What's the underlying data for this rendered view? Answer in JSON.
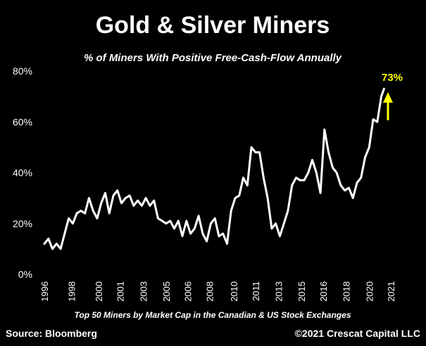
{
  "colors": {
    "background": "#000000",
    "line": "#ffffff",
    "text": "#ffffff",
    "accent": "#ffff00"
  },
  "footer": {
    "source": "Source: Bloomberg",
    "copyright": "©2021 Crescat Capital LLC"
  },
  "chart_data": {
    "type": "line",
    "title": "Gold & Silver Miners",
    "subtitle": "% of Miners With Positive Free-Cash-Flow Annually",
    "xlabel": "Top 50 Miners by Market Cap in the Canadian & US Stock Exchanges",
    "ylabel": "",
    "grid": false,
    "legend": "none",
    "xlim": [
      1996,
      2021.6
    ],
    "ylim": [
      0,
      80
    ],
    "y_ticks": [
      {
        "value": 0,
        "label": "0%"
      },
      {
        "value": 20,
        "label": "20%"
      },
      {
        "value": 40,
        "label": "40%"
      },
      {
        "value": 60,
        "label": "60%"
      },
      {
        "value": 80,
        "label": "80%"
      }
    ],
    "x_ticks": [
      {
        "value": 1996,
        "label": "1996"
      },
      {
        "value": 1998,
        "label": "1998"
      },
      {
        "value": 2000,
        "label": "2000"
      },
      {
        "value": 2001.6,
        "label": "2001"
      },
      {
        "value": 2003.3,
        "label": "2003"
      },
      {
        "value": 2005,
        "label": "2005"
      },
      {
        "value": 2006.6,
        "label": "2006"
      },
      {
        "value": 2008.2,
        "label": "2008"
      },
      {
        "value": 2010,
        "label": "2010"
      },
      {
        "value": 2011.6,
        "label": "2011"
      },
      {
        "value": 2013.3,
        "label": "2013"
      },
      {
        "value": 2015,
        "label": "2015"
      },
      {
        "value": 2016.6,
        "label": "2016"
      },
      {
        "value": 2018.3,
        "label": "2018"
      },
      {
        "value": 2020,
        "label": "2020"
      },
      {
        "value": 2021.6,
        "label": "2021"
      }
    ],
    "annotation": {
      "label": "73%",
      "value": 73,
      "arrow": "up"
    },
    "series": [
      {
        "values": [
          [
            1996.0,
            12
          ],
          [
            1996.3,
            14
          ],
          [
            1996.6,
            10
          ],
          [
            1996.9,
            12
          ],
          [
            1997.2,
            10
          ],
          [
            1997.5,
            16
          ],
          [
            1997.8,
            22
          ],
          [
            1998.1,
            20
          ],
          [
            1998.4,
            24
          ],
          [
            1998.7,
            25
          ],
          [
            1999.0,
            24
          ],
          [
            1999.3,
            30
          ],
          [
            1999.6,
            25
          ],
          [
            1999.9,
            22
          ],
          [
            2000.2,
            28
          ],
          [
            2000.5,
            32
          ],
          [
            2000.8,
            24
          ],
          [
            2001.1,
            31
          ],
          [
            2001.4,
            33
          ],
          [
            2001.7,
            28
          ],
          [
            2002.0,
            30
          ],
          [
            2002.3,
            31
          ],
          [
            2002.6,
            27
          ],
          [
            2002.9,
            29
          ],
          [
            2003.2,
            27
          ],
          [
            2003.5,
            30
          ],
          [
            2003.8,
            27
          ],
          [
            2004.1,
            29
          ],
          [
            2004.4,
            22
          ],
          [
            2004.7,
            21
          ],
          [
            2005.0,
            20
          ],
          [
            2005.3,
            21
          ],
          [
            2005.6,
            18
          ],
          [
            2005.9,
            21
          ],
          [
            2006.2,
            15
          ],
          [
            2006.5,
            21
          ],
          [
            2006.8,
            16
          ],
          [
            2007.1,
            18
          ],
          [
            2007.4,
            23
          ],
          [
            2007.7,
            16
          ],
          [
            2008.0,
            13
          ],
          [
            2008.3,
            20
          ],
          [
            2008.6,
            22
          ],
          [
            2008.9,
            15
          ],
          [
            2009.2,
            16
          ],
          [
            2009.5,
            12
          ],
          [
            2009.8,
            25
          ],
          [
            2010.1,
            30
          ],
          [
            2010.4,
            31
          ],
          [
            2010.7,
            38
          ],
          [
            2011.0,
            35
          ],
          [
            2011.3,
            50
          ],
          [
            2011.6,
            48
          ],
          [
            2011.9,
            48
          ],
          [
            2012.2,
            38
          ],
          [
            2012.5,
            30
          ],
          [
            2012.8,
            18
          ],
          [
            2013.1,
            20
          ],
          [
            2013.4,
            15
          ],
          [
            2013.7,
            20
          ],
          [
            2014.0,
            25
          ],
          [
            2014.3,
            35
          ],
          [
            2014.6,
            38
          ],
          [
            2014.9,
            37
          ],
          [
            2015.2,
            37
          ],
          [
            2015.5,
            40
          ],
          [
            2015.8,
            45
          ],
          [
            2016.1,
            40
          ],
          [
            2016.4,
            32
          ],
          [
            2016.7,
            57
          ],
          [
            2017.0,
            48
          ],
          [
            2017.3,
            42
          ],
          [
            2017.6,
            40
          ],
          [
            2017.9,
            35
          ],
          [
            2018.2,
            33
          ],
          [
            2018.5,
            34
          ],
          [
            2018.8,
            30
          ],
          [
            2019.1,
            36
          ],
          [
            2019.4,
            38
          ],
          [
            2019.7,
            46
          ],
          [
            2020.0,
            50
          ],
          [
            2020.3,
            61
          ],
          [
            2020.6,
            60
          ],
          [
            2020.9,
            70
          ],
          [
            2021.1,
            73
          ]
        ]
      }
    ]
  }
}
